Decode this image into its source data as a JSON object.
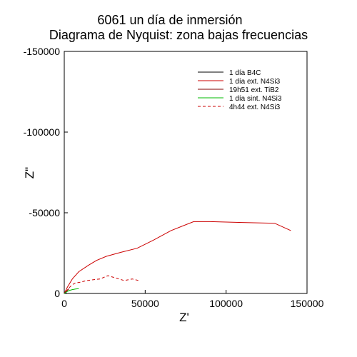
{
  "chart_data": {
    "type": "line",
    "title": "6061 un día de inmersión",
    "subtitle": "Diagrama de Nyquist: zona bajas frecuencias",
    "xlabel": "Z'",
    "ylabel": "Z\"",
    "xlim": [
      0,
      150000
    ],
    "ylim": [
      0,
      -150000
    ],
    "x_ticks": [
      0,
      50000,
      100000,
      150000
    ],
    "x_tick_labels": [
      "0",
      "50000",
      "100000",
      "150000"
    ],
    "y_ticks": [
      0,
      -50000,
      -100000,
      -150000
    ],
    "y_tick_labels": [
      "0",
      "-50000",
      "-100000",
      "-150000"
    ],
    "grid": false,
    "legend_position": "top-right",
    "series": [
      {
        "name": "1 día B4C",
        "color": "#000000",
        "dash": "solid",
        "x": [
          0,
          1500
        ],
        "y": [
          0,
          -300
        ]
      },
      {
        "name": "1 día ext. N4Si3",
        "color": "#cc0000",
        "dash": "solid",
        "x": [
          0,
          2000,
          5000,
          9000,
          15000,
          20000,
          26000,
          35000,
          45000,
          55000,
          66000,
          80000,
          90000,
          110000,
          130000,
          140000
        ],
        "y": [
          0,
          -4000,
          -9000,
          -13500,
          -17500,
          -20500,
          -23000,
          -25500,
          -28000,
          -33000,
          -39000,
          -44500,
          -44500,
          -44000,
          -43500,
          -39000
        ]
      },
      {
        "name": "19h51 ext. TiB2",
        "color": "#800000",
        "dash": "solid",
        "x": [
          0,
          1500,
          3000
        ],
        "y": [
          0,
          -1500,
          -3000
        ]
      },
      {
        "name": "1 día sint. N4Si3",
        "color": "#00bb00",
        "dash": "solid",
        "x": [
          0,
          1500,
          3000,
          5000,
          7000,
          9000
        ],
        "y": [
          0,
          -1000,
          -1800,
          -2400,
          -2800,
          -3000
        ]
      },
      {
        "name": "4h44 ext. N4Si3",
        "color": "#cc0000",
        "dash": "dashed",
        "x": [
          1000,
          3000,
          5000,
          7000,
          10000,
          14000,
          18000,
          22000,
          27000,
          32000,
          37000,
          42000,
          46000
        ],
        "y": [
          -1200,
          -3500,
          -5500,
          -6500,
          -7000,
          -8000,
          -8500,
          -9000,
          -11000,
          -9500,
          -8000,
          -9000,
          -8000
        ]
      }
    ]
  }
}
